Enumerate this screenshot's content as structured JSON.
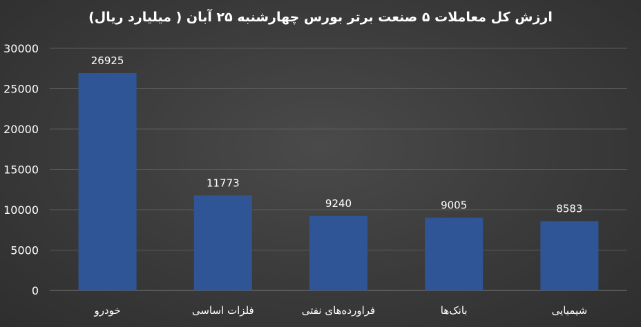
{
  "chart_data": {
    "type": "bar",
    "title": "ارزش کل معاملات ۵ صنعت برتر بورس چهارشنبه ۲۵ آبان ( میلیارد ریال)",
    "categories": [
      "خودرو",
      "فلزات اساسی",
      "فراورده‌های نفتی",
      "بانک‌ها",
      "شیمیایی"
    ],
    "values": [
      26925,
      11773,
      9240,
      9005,
      8583
    ],
    "data_labels": [
      "26925",
      "11773",
      "9240",
      "9005",
      "8583"
    ],
    "ylim": [
      0,
      30000
    ],
    "yticks": [
      0,
      5000,
      10000,
      15000,
      20000,
      25000,
      30000
    ],
    "ytick_labels": [
      "0",
      "5000",
      "10000",
      "15000",
      "20000",
      "25000",
      "30000"
    ],
    "xlabel": "",
    "ylabel": "",
    "grid": true,
    "legend": "none",
    "bar_color": "#2f5597"
  }
}
